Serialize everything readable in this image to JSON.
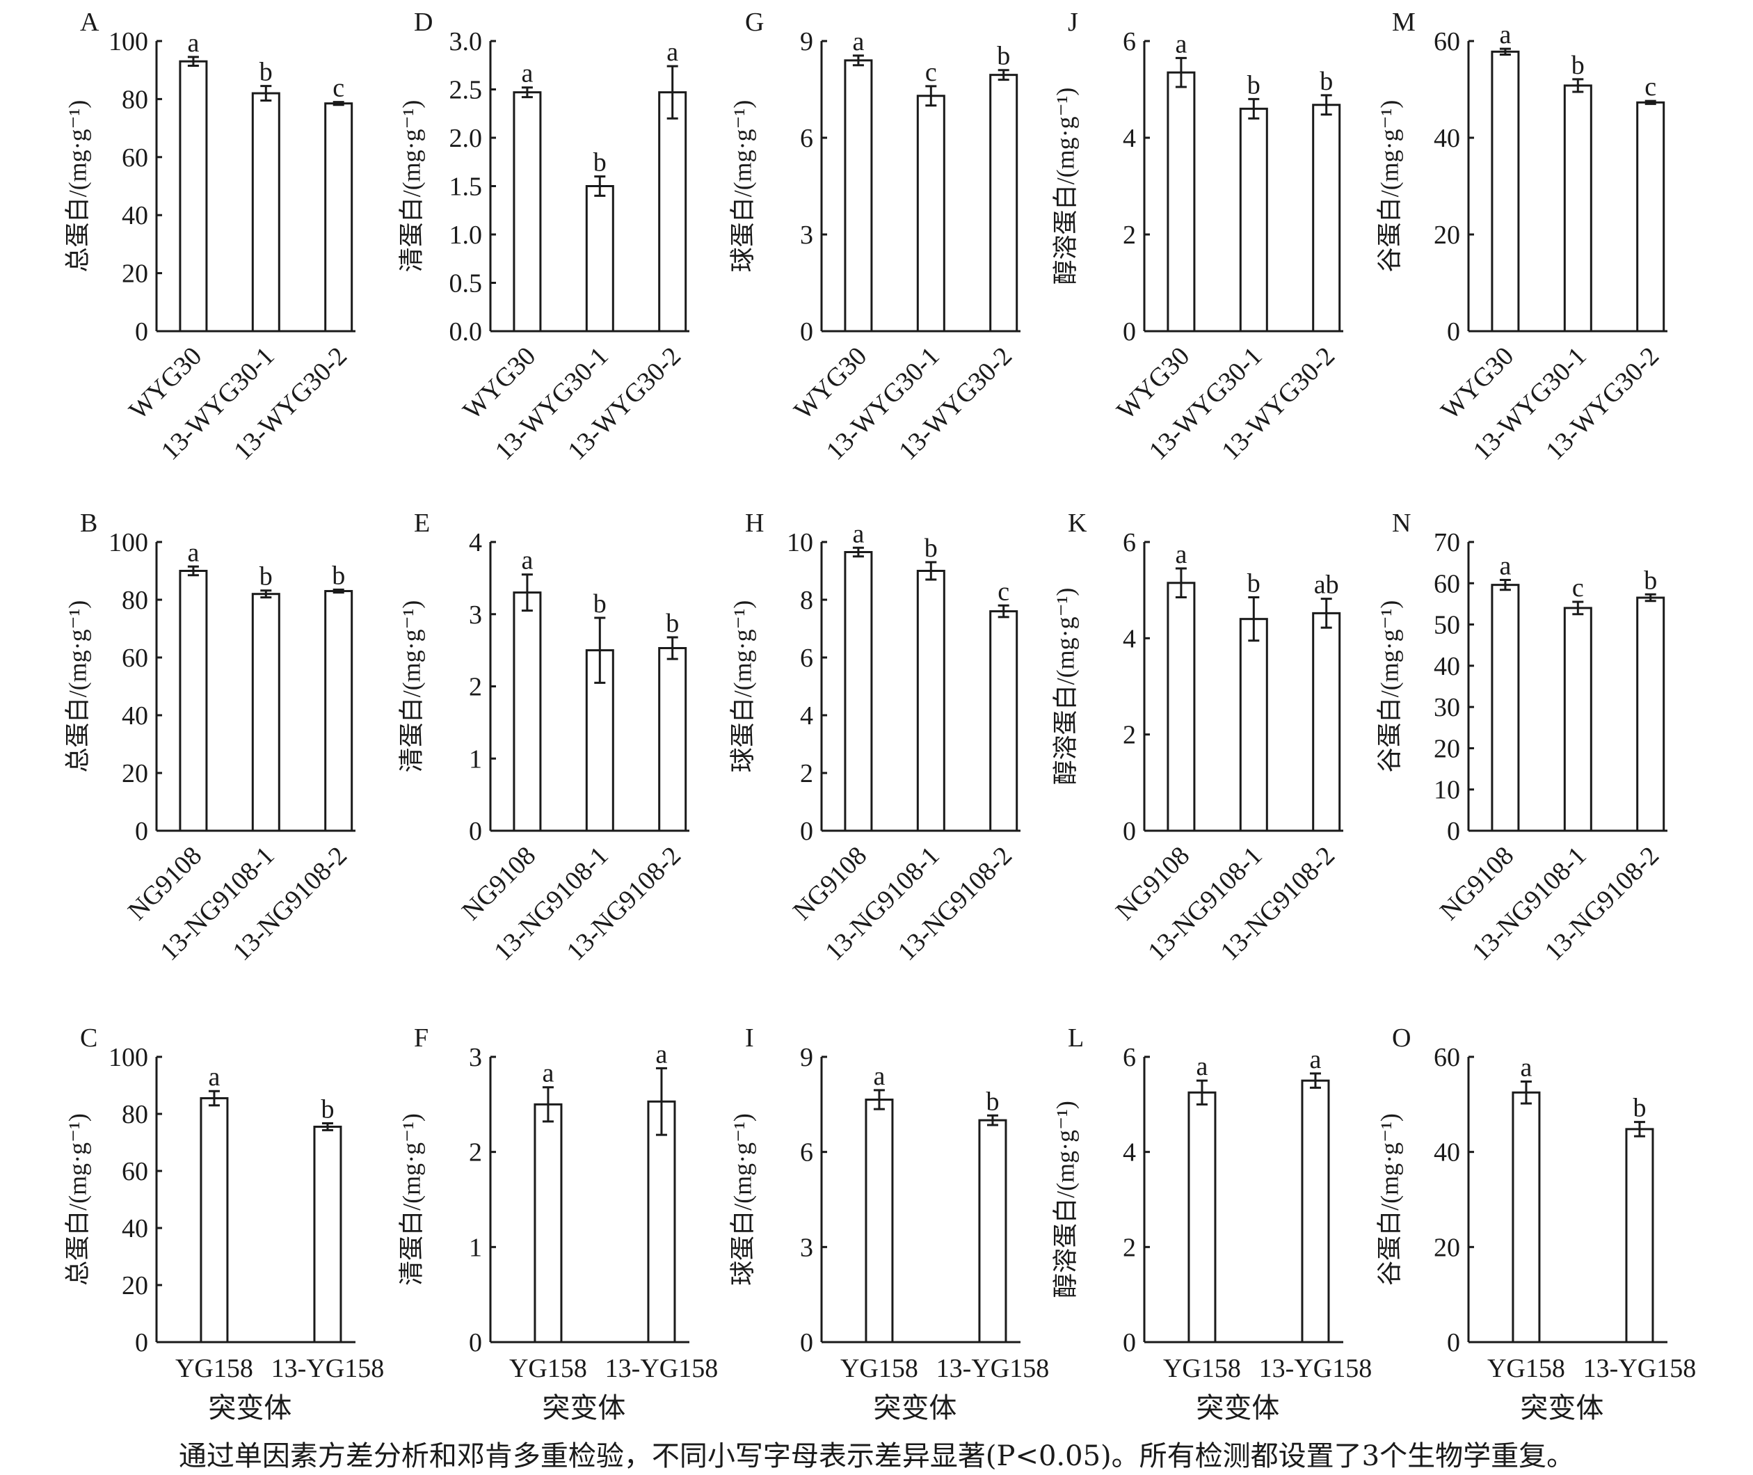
{
  "caption": "通过单因素方差分析和邓肯多重检验，不同小写字母表示差异显著(P<0.05)。所有检测都设置了3个生物学重复。",
  "xgroup_label": "突变体",
  "chart_data": [
    {
      "type": "bar",
      "panel": "A",
      "ylabel": "总蛋白/(mg·g⁻¹)",
      "ylim": [
        0,
        100
      ],
      "yticks": [
        "0",
        "20",
        "40",
        "60",
        "80",
        "100"
      ],
      "categories": [
        "WYG30",
        "13-WYG30-1",
        "13-WYG30-2"
      ],
      "values": [
        93,
        82,
        78.5
      ],
      "errors": [
        1.5,
        2.5,
        0.5
      ],
      "letters": [
        "a",
        "b",
        "c"
      ]
    },
    {
      "type": "bar",
      "panel": "D",
      "ylabel": "清蛋白/(mg·g⁻¹)",
      "ylim": [
        0,
        3
      ],
      "yticks": [
        "0.0",
        "0.5",
        "1.0",
        "1.5",
        "2.0",
        "2.5",
        "3.0"
      ],
      "categories": [
        "WYG30",
        "13-WYG30-1",
        "13-WYG30-2"
      ],
      "values": [
        2.47,
        1.5,
        2.47
      ],
      "errors": [
        0.05,
        0.1,
        0.27
      ],
      "letters": [
        "a",
        "b",
        "a"
      ]
    },
    {
      "type": "bar",
      "panel": "G",
      "ylabel": "球蛋白/(mg·g⁻¹)",
      "ylim": [
        0,
        9
      ],
      "yticks": [
        "0",
        "3",
        "6",
        "9"
      ],
      "categories": [
        "WYG30",
        "13-WYG30-1",
        "13-WYG30-2"
      ],
      "values": [
        8.4,
        7.3,
        7.95
      ],
      "errors": [
        0.15,
        0.3,
        0.15
      ],
      "letters": [
        "a",
        "c",
        "b"
      ]
    },
    {
      "type": "bar",
      "panel": "J",
      "ylabel": "醇溶蛋白/(mg·g⁻¹)",
      "ylim": [
        0,
        6
      ],
      "yticks": [
        "0",
        "2",
        "4",
        "6"
      ],
      "categories": [
        "WYG30",
        "13-WYG30-1",
        "13-WYG30-2"
      ],
      "values": [
        5.35,
        4.6,
        4.68
      ],
      "errors": [
        0.3,
        0.2,
        0.2
      ],
      "letters": [
        "a",
        "b",
        "b"
      ]
    },
    {
      "type": "bar",
      "panel": "M",
      "ylabel": "谷蛋白/(mg·g⁻¹)",
      "ylim": [
        0,
        60
      ],
      "yticks": [
        "0",
        "20",
        "40",
        "60"
      ],
      "categories": [
        "WYG30",
        "13-WYG30-1",
        "13-WYG30-2"
      ],
      "values": [
        57.8,
        50.8,
        47.3
      ],
      "errors": [
        0.6,
        1.3,
        0.3
      ],
      "letters": [
        "a",
        "b",
        "c"
      ]
    },
    {
      "type": "bar",
      "panel": "B",
      "ylabel": "总蛋白/(mg·g⁻¹)",
      "ylim": [
        0,
        100
      ],
      "yticks": [
        "0",
        "20",
        "40",
        "60",
        "80",
        "100"
      ],
      "categories": [
        "NG9108",
        "13-NG9108-1",
        "13-NG9108-2"
      ],
      "values": [
        90,
        82,
        83
      ],
      "errors": [
        1.5,
        1.2,
        0.5
      ],
      "letters": [
        "a",
        "b",
        "b"
      ]
    },
    {
      "type": "bar",
      "panel": "E",
      "ylabel": "清蛋白/(mg·g⁻¹)",
      "ylim": [
        0,
        4
      ],
      "yticks": [
        "0",
        "1",
        "2",
        "3",
        "4"
      ],
      "categories": [
        "NG9108",
        "13-NG9108-1",
        "13-NG9108-2"
      ],
      "values": [
        3.3,
        2.5,
        2.53
      ],
      "errors": [
        0.25,
        0.45,
        0.15
      ],
      "letters": [
        "a",
        "b",
        "b"
      ]
    },
    {
      "type": "bar",
      "panel": "H",
      "ylabel": "球蛋白/(mg·g⁻¹)",
      "ylim": [
        0,
        10
      ],
      "yticks": [
        "0",
        "2",
        "4",
        "6",
        "8",
        "10"
      ],
      "categories": [
        "NG9108",
        "13-NG9108-1",
        "13-NG9108-2"
      ],
      "values": [
        9.65,
        9.0,
        7.6
      ],
      "errors": [
        0.15,
        0.3,
        0.2
      ],
      "letters": [
        "a",
        "b",
        "c"
      ]
    },
    {
      "type": "bar",
      "panel": "K",
      "ylabel": "醇溶蛋白/(mg·g⁻¹)",
      "ylim": [
        0,
        6
      ],
      "yticks": [
        "0",
        "2",
        "4",
        "6"
      ],
      "categories": [
        "NG9108",
        "13-NG9108-1",
        "13-NG9108-2"
      ],
      "values": [
        5.15,
        4.4,
        4.52
      ],
      "errors": [
        0.3,
        0.45,
        0.3
      ],
      "letters": [
        "a",
        "b",
        "ab"
      ]
    },
    {
      "type": "bar",
      "panel": "N",
      "ylabel": "谷蛋白/(mg·g⁻¹)",
      "ylim": [
        0,
        70
      ],
      "yticks": [
        "0",
        "10",
        "20",
        "30",
        "40",
        "50",
        "60",
        "70"
      ],
      "categories": [
        "NG9108",
        "13-NG9108-1",
        "13-NG9108-2"
      ],
      "values": [
        59.6,
        54,
        56.5
      ],
      "errors": [
        1.2,
        1.5,
        0.8
      ],
      "letters": [
        "a",
        "c",
        "b"
      ]
    },
    {
      "type": "bar",
      "panel": "C",
      "ylabel": "总蛋白/(mg·g⁻¹)",
      "ylim": [
        0,
        100
      ],
      "yticks": [
        "0",
        "20",
        "40",
        "60",
        "80",
        "100"
      ],
      "categories": [
        "YG158",
        "13-YG158"
      ],
      "values": [
        85.5,
        75.5
      ],
      "errors": [
        2.5,
        1.2
      ],
      "letters": [
        "a",
        "b"
      ]
    },
    {
      "type": "bar",
      "panel": "F",
      "ylabel": "清蛋白/(mg·g⁻¹)",
      "ylim": [
        0,
        3
      ],
      "yticks": [
        "0",
        "1",
        "2",
        "3"
      ],
      "categories": [
        "YG158",
        "13-YG158"
      ],
      "values": [
        2.5,
        2.53
      ],
      "errors": [
        0.18,
        0.35
      ],
      "letters": [
        "a",
        "a"
      ]
    },
    {
      "type": "bar",
      "panel": "I",
      "ylabel": "球蛋白/(mg·g⁻¹)",
      "ylim": [
        0,
        9
      ],
      "yticks": [
        "0",
        "3",
        "6",
        "9"
      ],
      "categories": [
        "YG158",
        "13-YG158"
      ],
      "values": [
        7.65,
        7.0
      ],
      "errors": [
        0.3,
        0.15
      ],
      "letters": [
        "a",
        "b"
      ]
    },
    {
      "type": "bar",
      "panel": "L",
      "ylabel": "醇溶蛋白/(mg·g⁻¹)",
      "ylim": [
        0,
        6
      ],
      "yticks": [
        "0",
        "2",
        "4",
        "6"
      ],
      "categories": [
        "YG158",
        "13-YG158"
      ],
      "values": [
        5.25,
        5.5
      ],
      "errors": [
        0.25,
        0.15
      ],
      "letters": [
        "a",
        "a"
      ]
    },
    {
      "type": "bar",
      "panel": "O",
      "ylabel": "谷蛋白/(mg·g⁻¹)",
      "ylim": [
        0,
        60
      ],
      "yticks": [
        "0",
        "20",
        "40",
        "60"
      ],
      "categories": [
        "YG158",
        "13-YG158"
      ],
      "values": [
        52.5,
        44.8
      ],
      "errors": [
        2.3,
        1.5
      ],
      "letters": [
        "a",
        "b"
      ]
    }
  ]
}
